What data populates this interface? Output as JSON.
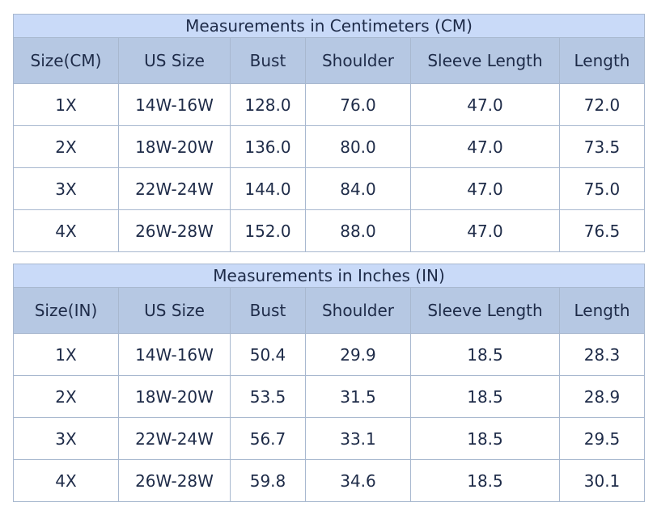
{
  "tables": [
    {
      "title": "Measurements in Centimeters (CM)",
      "headers": [
        "Size(CM)",
        "US Size",
        "Bust",
        "Shoulder",
        "Sleeve Length",
        "Length"
      ],
      "rows": [
        [
          "1X",
          "14W-16W",
          "128.0",
          "76.0",
          "47.0",
          "72.0"
        ],
        [
          "2X",
          "18W-20W",
          "136.0",
          "80.0",
          "47.0",
          "73.5"
        ],
        [
          "3X",
          "22W-24W",
          "144.0",
          "84.0",
          "47.0",
          "75.0"
        ],
        [
          "4X",
          "26W-28W",
          "152.0",
          "88.0",
          "47.0",
          "76.5"
        ]
      ]
    },
    {
      "title": "Measurements in Inches (IN)",
      "headers": [
        "Size(IN)",
        "US Size",
        "Bust",
        "Shoulder",
        "Sleeve Length",
        "Length"
      ],
      "rows": [
        [
          "1X",
          "14W-16W",
          "50.4",
          "29.9",
          "18.5",
          "28.3"
        ],
        [
          "2X",
          "18W-20W",
          "53.5",
          "31.5",
          "18.5",
          "28.9"
        ],
        [
          "3X",
          "22W-24W",
          "56.7",
          "33.1",
          "18.5",
          "29.5"
        ],
        [
          "4X",
          "26W-28W",
          "59.8",
          "34.6",
          "18.5",
          "30.1"
        ]
      ]
    }
  ]
}
